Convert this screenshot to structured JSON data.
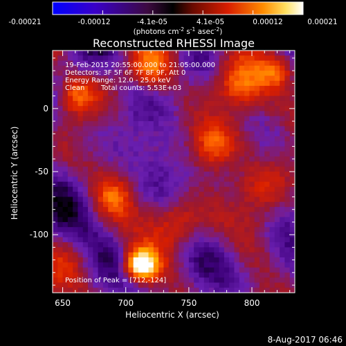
{
  "colorbar": {
    "ticks": [
      "-0.00021",
      "-0.00012",
      "-4.1e-05",
      "4.1e-05",
      "0.00012",
      "0.00021"
    ],
    "unit_parts": {
      "open": "(photons cm",
      "exp1": "-2",
      "mid1": " s",
      "exp2": "-1",
      "mid2": " asec",
      "exp3": "-2",
      "close": ")"
    },
    "range": [
      -0.00021,
      0.00021
    ],
    "colors": [
      "#0000ff",
      "#4a00c8",
      "#000000",
      "#5a0a00",
      "#c81e00",
      "#ff8c00",
      "#ffff80",
      "#ffffff"
    ]
  },
  "chart_data": {
    "type": "heatmap",
    "title": "Reconstructed RHESSI Image",
    "xlabel": "Heliocentric X (arcsec)",
    "ylabel": "Heliocentric Y (arcsec)",
    "xlim": [
      642,
      834
    ],
    "ylim": [
      -146,
      46
    ],
    "x_ticks": [
      650,
      700,
      750,
      800
    ],
    "y_ticks": [
      -100,
      -50,
      0
    ],
    "info_lines": [
      "19-Feb-2015 20:55:00.000 to 21:05:00.000",
      "Detectors: 3F 5F 6F 7F 8F 9F, Att 0",
      "Energy Range: 12.0 - 25.0 keV"
    ],
    "clean_label": "Clean",
    "total_counts": "Total counts: 5.53E+03",
    "peak_label": "Position of Peak = [712,-124]",
    "peak": {
      "x": 712,
      "y": -124
    },
    "palette_stops": [
      "#000000",
      "#3c0078",
      "#6a1fb0",
      "#9a1830",
      "#d81e00",
      "#ff6400",
      "#ffb400",
      "#ffffff"
    ]
  },
  "footer": {
    "timestamp": "8-Aug-2017 06:46"
  }
}
